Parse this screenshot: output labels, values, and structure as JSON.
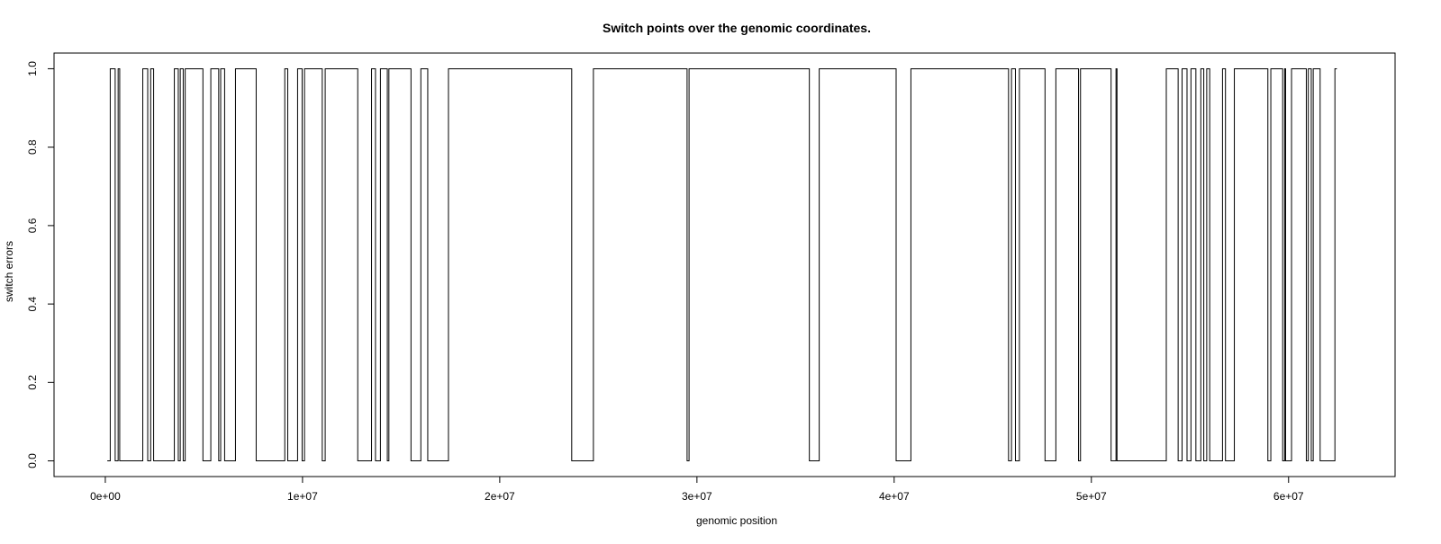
{
  "chart_data": {
    "type": "line",
    "title": "Switch points over the genomic coordinates.",
    "xlabel": "genomic position",
    "ylabel": "switch errors",
    "xlim": [
      -2600000,
      65400000
    ],
    "ylim": [
      -0.04,
      1.04
    ],
    "x_ticks": [
      0,
      10000000,
      20000000,
      30000000,
      40000000,
      50000000,
      60000000
    ],
    "x_tick_labels": [
      "0e+00",
      "1e+07",
      "2e+07",
      "3e+07",
      "4e+07",
      "5e+07",
      "6e+07"
    ],
    "y_ticks": [
      0.0,
      0.2,
      0.4,
      0.6,
      0.8,
      1.0
    ],
    "y_tick_labels": [
      "0.0",
      "0.2",
      "0.4",
      "0.6",
      "0.8",
      "1.0"
    ],
    "grid": false,
    "legend": "none",
    "series": [
      {
        "color": "#000000",
        "x": [
          100000,
          250000,
          250000,
          500000,
          500000,
          650000,
          650000,
          730000,
          730000,
          1900000,
          1900000,
          2150000,
          2150000,
          2300000,
          2300000,
          2450000,
          2450000,
          3500000,
          3500000,
          3700000,
          3700000,
          3800000,
          3800000,
          3950000,
          3950000,
          4050000,
          4050000,
          4950000,
          4950000,
          5350000,
          5350000,
          5750000,
          5750000,
          5850000,
          5850000,
          6050000,
          6050000,
          6600000,
          6600000,
          7650000,
          7650000,
          9100000,
          9100000,
          9250000,
          9250000,
          9750000,
          9750000,
          9980000,
          9980000,
          10100000,
          10100000,
          11000000,
          11000000,
          11150000,
          11150000,
          12800000,
          12800000,
          13500000,
          13500000,
          13700000,
          13700000,
          13950000,
          13950000,
          14300000,
          14300000,
          14380000,
          14380000,
          15500000,
          15500000,
          16000000,
          16000000,
          16350000,
          16350000,
          17400000,
          17400000,
          23650000,
          23650000,
          24750000,
          24750000,
          29500000,
          29500000,
          29600000,
          29600000,
          35700000,
          35700000,
          36200000,
          36200000,
          40100000,
          40100000,
          40850000,
          40850000,
          45800000,
          45800000,
          45950000,
          45950000,
          46150000,
          46150000,
          46350000,
          46350000,
          47650000,
          47650000,
          48200000,
          48200000,
          49350000,
          49350000,
          49450000,
          49450000,
          51000000,
          51000000,
          51250000,
          51250000,
          51300000,
          51300000,
          53800000,
          53800000,
          54400000,
          54400000,
          54600000,
          54600000,
          54850000,
          54850000,
          55050000,
          55050000,
          55300000,
          55300000,
          55550000,
          55550000,
          55700000,
          55700000,
          55850000,
          55850000,
          56000000,
          56000000,
          56650000,
          56650000,
          56800000,
          56800000,
          57250000,
          57250000,
          58950000,
          58950000,
          59100000,
          59100000,
          59700000,
          59700000,
          59800000,
          59800000,
          59850000,
          59850000,
          60150000,
          60150000,
          60900000,
          60900000,
          61000000,
          61000000,
          61150000,
          61150000,
          61250000,
          61250000,
          61600000,
          61600000,
          62350000,
          62350000,
          62450000
        ],
        "y": [
          0,
          0,
          1,
          1,
          0,
          0,
          1,
          1,
          0,
          0,
          1,
          1,
          0,
          0,
          1,
          1,
          0,
          0,
          1,
          1,
          0,
          0,
          1,
          1,
          0,
          0,
          1,
          1,
          0,
          0,
          1,
          1,
          0,
          0,
          1,
          1,
          0,
          0,
          1,
          1,
          0,
          0,
          1,
          1,
          0,
          0,
          1,
          1,
          0,
          0,
          1,
          1,
          0,
          0,
          1,
          1,
          0,
          0,
          1,
          1,
          0,
          0,
          1,
          1,
          0,
          0,
          1,
          1,
          0,
          0,
          1,
          1,
          0,
          0,
          1,
          1,
          0,
          0,
          1,
          1,
          0,
          0,
          1,
          1,
          0,
          0,
          1,
          1,
          0,
          0,
          1,
          1,
          0,
          0,
          1,
          1,
          0,
          0,
          1,
          1,
          0,
          0,
          1,
          1,
          0,
          0,
          1,
          1,
          0,
          0,
          1,
          1,
          0,
          0,
          1,
          1,
          0,
          0,
          1,
          1,
          0,
          0,
          1,
          1,
          0,
          0,
          1,
          1,
          0,
          0,
          1,
          1,
          0,
          0,
          1,
          1,
          0,
          0,
          1,
          1,
          0,
          0,
          1,
          1,
          0,
          0,
          1,
          1,
          0,
          0,
          1,
          1,
          0,
          0,
          1,
          1,
          0,
          0,
          1,
          1,
          0,
          0,
          1,
          1
        ]
      }
    ]
  }
}
